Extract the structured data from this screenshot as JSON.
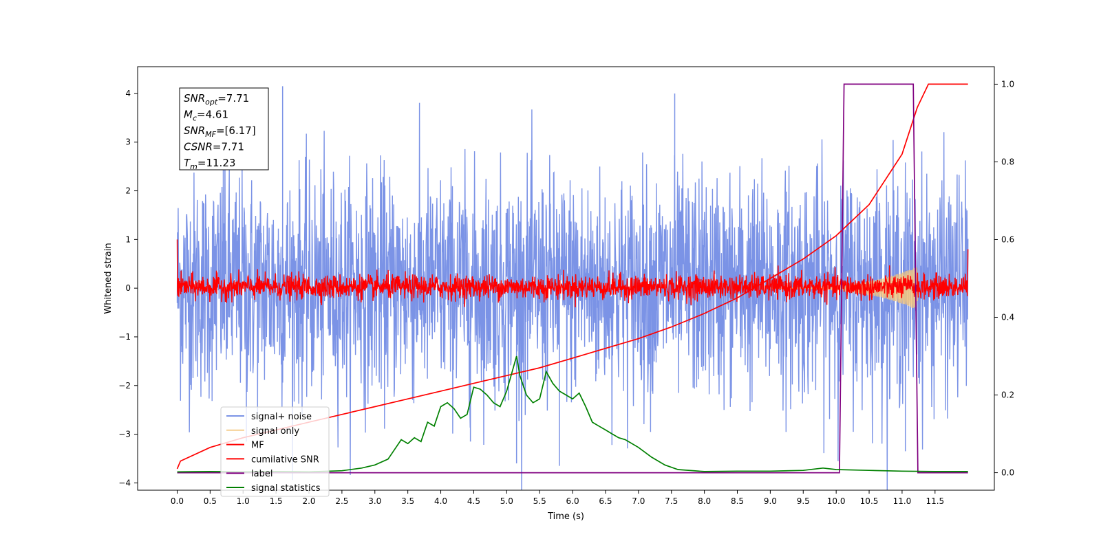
{
  "chart_data": {
    "type": "line",
    "title": "",
    "xlabel": "Time (s)",
    "ylabel": "Whitened strain",
    "xlim": [
      -0.6,
      12.4
    ],
    "ylim": [
      -4.15,
      4.55
    ],
    "y2lim": [
      -0.045,
      1.045
    ],
    "xticks": [
      "0.0",
      "0.5",
      "1.0",
      "1.5",
      "2.0",
      "2.5",
      "3.0",
      "3.5",
      "4.0",
      "4.5",
      "5.0",
      "5.5",
      "6.0",
      "6.5",
      "7.0",
      "7.5",
      "8.0",
      "8.5",
      "9.0",
      "9.5",
      "10.0",
      "10.5",
      "11.0",
      "11.5"
    ],
    "yticks": [
      "4",
      "3",
      "2",
      "1",
      "0",
      "−1",
      "−2",
      "−3",
      "−4"
    ],
    "y2ticks": [
      "1.0",
      "0.8",
      "0.6",
      "0.4",
      "0.2",
      "0.0"
    ],
    "grid": false,
    "legend_position": "lower-left",
    "legend": [
      "signal+ noise",
      "signal only",
      "MF",
      "cumilative SNR",
      "label",
      "signal statistics"
    ],
    "colors": {
      "signal_noise": "#7b93e6",
      "signal_only": "#f5c77e",
      "mf": "#ff0000",
      "cumulative_snr": "#ff0000",
      "label": "#800080",
      "signal_statistics": "#008000"
    },
    "annotation_box": {
      "lines": [
        {
          "var": "SNR",
          "sub": "opt",
          "val": "=7.71"
        },
        {
          "var": "M",
          "sub": "c",
          "val": "=4.61"
        },
        {
          "var": "SNR",
          "sub": "MF",
          "val": "=[6.17]"
        },
        {
          "var": "CSNR",
          "sub": "",
          "val": "=7.71"
        },
        {
          "var": "T",
          "sub": "m",
          "val": "=11.23"
        }
      ]
    },
    "series": [
      {
        "name": "signal+ noise",
        "axis": "left",
        "kind": "noise",
        "x_range": [
          0.0,
          12.0
        ],
        "typical_range": [
          -1.8,
          1.9
        ],
        "extremes": [
          4.2,
          -3.65
        ]
      },
      {
        "name": "signal only",
        "axis": "left",
        "kind": "chirp",
        "x_range": [
          9.0,
          11.23
        ],
        "peak_amplitude": 0.45
      },
      {
        "name": "MF",
        "axis": "left",
        "kind": "noise",
        "x_range": [
          0.0,
          12.0
        ],
        "typical_range": [
          -0.2,
          0.25
        ],
        "extremes": [
          1.0,
          0.8
        ]
      },
      {
        "name": "cumilative SNR",
        "axis": "right",
        "x": [
          0.0,
          0.05,
          0.5,
          1.0,
          1.5,
          2.0,
          2.5,
          3.0,
          3.5,
          4.0,
          4.5,
          5.0,
          5.5,
          6.0,
          6.5,
          7.0,
          7.5,
          8.0,
          8.5,
          9.0,
          9.5,
          10.0,
          10.5,
          11.0,
          11.23,
          11.4,
          12.0
        ],
        "values": [
          0.01,
          0.03,
          0.065,
          0.09,
          0.11,
          0.13,
          0.15,
          0.17,
          0.19,
          0.21,
          0.23,
          0.25,
          0.27,
          0.295,
          0.32,
          0.345,
          0.375,
          0.41,
          0.45,
          0.5,
          0.55,
          0.61,
          0.69,
          0.82,
          0.94,
          1.0,
          1.0
        ]
      },
      {
        "name": "label",
        "axis": "right",
        "x": [
          0.0,
          10.05,
          10.12,
          11.17,
          11.24,
          12.0
        ],
        "values": [
          0.0,
          0.0,
          1.0,
          1.0,
          0.0,
          0.0
        ]
      },
      {
        "name": "signal statistics",
        "axis": "right",
        "x": [
          0.0,
          0.5,
          1.0,
          1.5,
          2.0,
          2.5,
          2.8,
          3.0,
          3.2,
          3.3,
          3.4,
          3.5,
          3.6,
          3.7,
          3.8,
          3.9,
          4.0,
          4.1,
          4.2,
          4.3,
          4.4,
          4.5,
          4.6,
          4.7,
          4.8,
          4.9,
          5.0,
          5.1,
          5.15,
          5.2,
          5.3,
          5.4,
          5.5,
          5.6,
          5.7,
          5.8,
          5.9,
          6.0,
          6.1,
          6.2,
          6.3,
          6.4,
          6.5,
          6.6,
          6.7,
          6.8,
          7.0,
          7.2,
          7.4,
          7.6,
          8.0,
          8.5,
          9.0,
          9.5,
          9.8,
          10.0,
          10.5,
          11.0,
          11.5,
          12.0
        ],
        "values": [
          0.002,
          0.003,
          0.002,
          0.003,
          0.002,
          0.005,
          0.012,
          0.02,
          0.035,
          0.06,
          0.085,
          0.075,
          0.09,
          0.08,
          0.13,
          0.12,
          0.17,
          0.18,
          0.165,
          0.14,
          0.15,
          0.22,
          0.215,
          0.2,
          0.18,
          0.17,
          0.21,
          0.27,
          0.3,
          0.25,
          0.2,
          0.18,
          0.19,
          0.26,
          0.23,
          0.21,
          0.2,
          0.19,
          0.205,
          0.17,
          0.13,
          0.12,
          0.11,
          0.1,
          0.09,
          0.085,
          0.065,
          0.04,
          0.02,
          0.008,
          0.003,
          0.004,
          0.004,
          0.006,
          0.012,
          0.008,
          0.006,
          0.004,
          0.003,
          0.003
        ]
      }
    ]
  }
}
